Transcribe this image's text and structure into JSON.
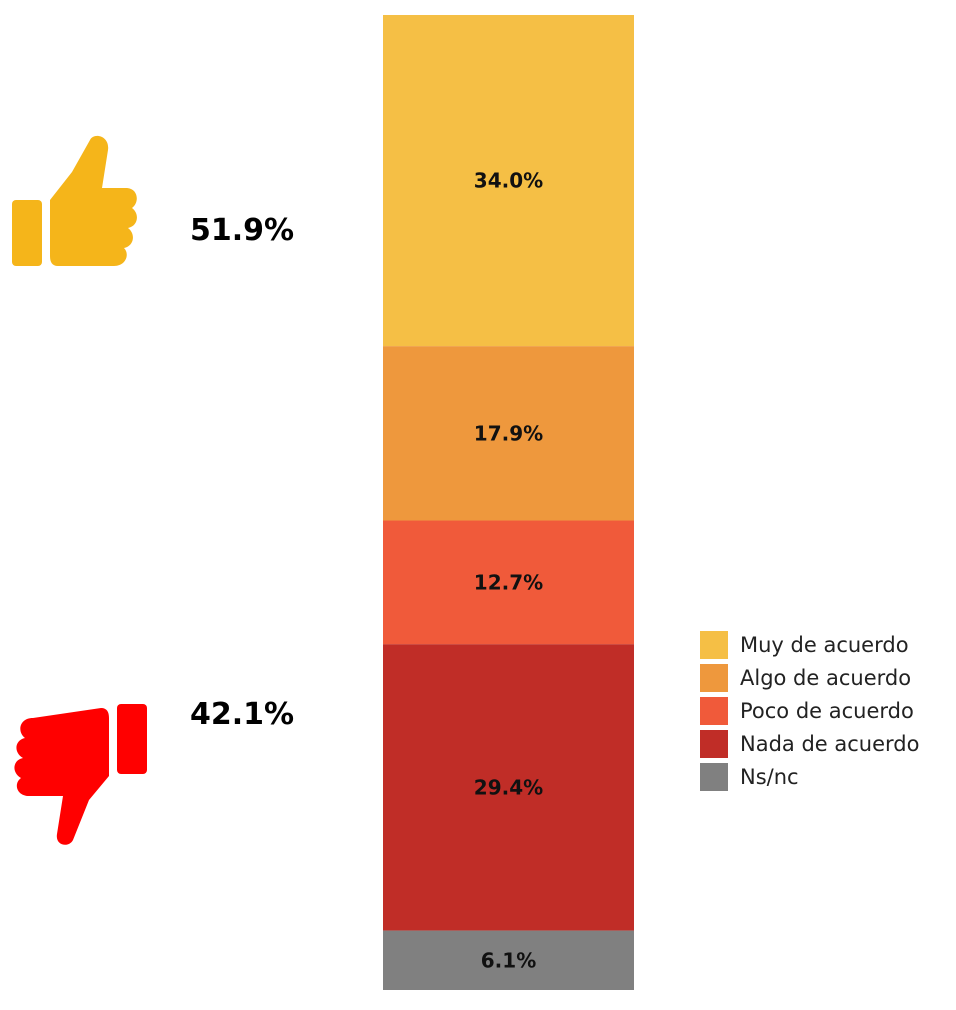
{
  "summary": {
    "agree_value": "51.9%",
    "disagree_value": "42.1%"
  },
  "icons": {
    "agree": "thumbs-up-icon",
    "disagree": "thumbs-down-icon",
    "agree_color": "#F5B51A",
    "disagree_color": "#FF0000"
  },
  "chart_data": {
    "type": "bar",
    "stacked": true,
    "orientation": "vertical",
    "unit": "%",
    "categories": [
      ""
    ],
    "series": [
      {
        "name": "Muy de acuerdo",
        "values": [
          34.0
        ],
        "label": "34.0%",
        "color": "#F5BF45"
      },
      {
        "name": "Algo de acuerdo",
        "values": [
          17.9
        ],
        "label": "17.9%",
        "color": "#EE983D"
      },
      {
        "name": "Poco de acuerdo",
        "values": [
          12.7
        ],
        "label": "12.7%",
        "color": "#F05A3A"
      },
      {
        "name": "Nada de acuerdo",
        "values": [
          29.4
        ],
        "label": "29.4%",
        "color": "#C02D27"
      },
      {
        "name": "Ns/nc",
        "values": [
          6.1
        ],
        "label": "6.1%",
        "color": "#808080"
      }
    ],
    "ylim": [
      0,
      100.1
    ],
    "legend_position": "right",
    "grid": false,
    "title": "",
    "xlabel": "",
    "ylabel": ""
  }
}
